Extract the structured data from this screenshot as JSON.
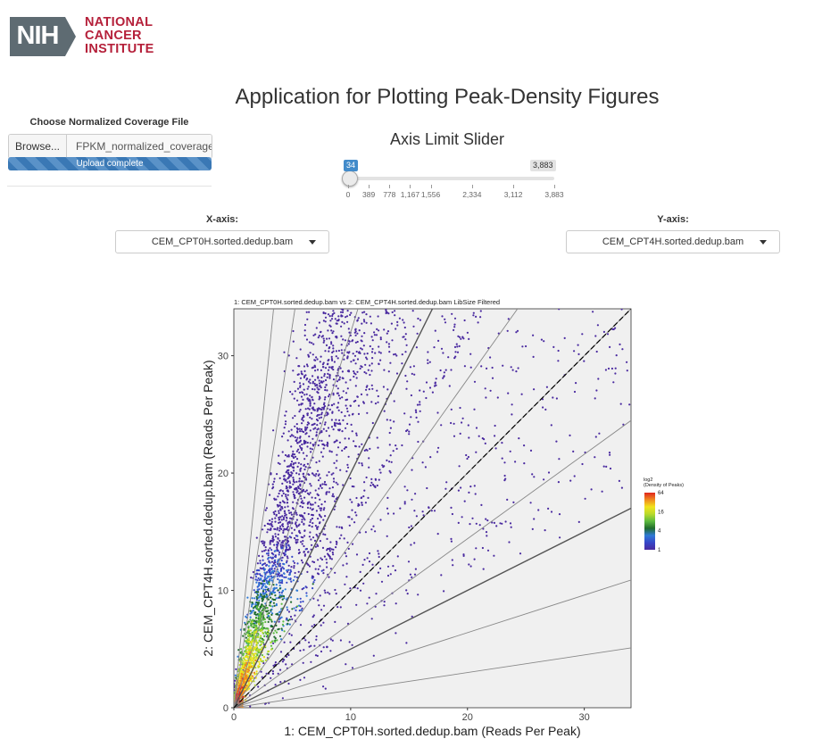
{
  "logo": {
    "nih": "NIH",
    "line1": "NATIONAL",
    "line2": "CANCER",
    "line3": "INSTITUTE"
  },
  "title": "Application for Plotting Peak-Density Figures",
  "sidebar": {
    "label": "Choose Normalized Coverage File",
    "browse_label": "Browse...",
    "file_name": "FPKM_normalized_coverage",
    "progress_text": "Upload complete"
  },
  "slider": {
    "title": "Axis Limit Slider",
    "value": 34,
    "min_badge": "34",
    "max_badge": "3,883",
    "min": 0,
    "max": 3883,
    "ticks": [
      "0",
      "389",
      "778",
      "1,167",
      "1,556",
      "2,334",
      "3,112",
      "3,883"
    ],
    "tick_values": [
      0,
      389,
      778,
      1167,
      1556,
      2334,
      3112,
      3883
    ]
  },
  "x_axis": {
    "label": "X-axis:",
    "selected": "CEM_CPT0H.sorted.dedup.bam"
  },
  "y_axis": {
    "label": "Y-axis:",
    "selected": "CEM_CPT4H.sorted.dedup.bam"
  },
  "chart_data": {
    "type": "scatter",
    "title": "1: CEM_CPT0H.sorted.dedup.bam vs 2: CEM_CPT4H.sorted.dedup.bam LibSize Filtered",
    "xlabel": "1: CEM_CPT0H.sorted.dedup.bam (Reads Per Peak)",
    "ylabel": "2: CEM_CPT4H.sorted.dedup.bam (Reads Per Peak)",
    "xlim": [
      0,
      34
    ],
    "ylim": [
      0,
      34
    ],
    "xticks": [
      0,
      10,
      20,
      30
    ],
    "yticks": [
      0,
      10,
      20,
      30
    ],
    "reference_line_slopes": [
      0.15,
      0.32,
      0.5,
      0.72,
      1,
      1.4,
      2,
      3.2,
      6.5,
      10
    ],
    "diagonal_slope": 1,
    "legend": {
      "title_line1": "log2",
      "title_line2": "(Density of Peaks)",
      "labels": [
        "64",
        "16",
        "4",
        "1"
      ],
      "label_values": [
        64,
        16,
        4,
        1
      ],
      "colors": [
        "#e0251d",
        "#f08a1e",
        "#f1e41c",
        "#b8d92b",
        "#5cbb3f",
        "#1f6b2c",
        "#2f7ad6",
        "#3646c8",
        "#4a2aa0"
      ]
    },
    "point_color": "#4a2aa0",
    "background": "#f0f0f0"
  }
}
